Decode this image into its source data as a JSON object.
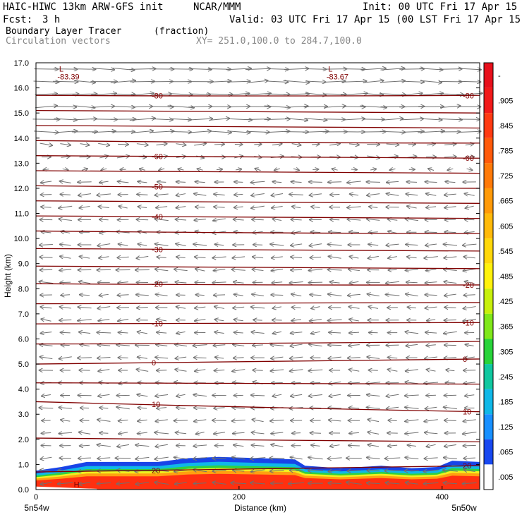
{
  "header": {
    "model": "HAIC-HIWC 13km ARW-GFS init",
    "org": "NCAR/MMM",
    "init": "Init: 00 UTC Fri 17 Apr 15",
    "fcst_label": "Fcst:",
    "fcst_value": "3 h",
    "valid": "Valid: 03 UTC Fri 17 Apr 15 (00 LST Fri 17 Apr 15)",
    "field": "Boundary Layer Tracer",
    "units": "(fraction)",
    "vectors": "Circulation vectors",
    "xy": "XY= 251.0,100.0 to 284.7,100.0"
  },
  "chart_data": {
    "type": "cross-section",
    "ylabel": "Height (km)",
    "xlabel": "Distance (km)",
    "ylim": [
      0.0,
      17.0
    ],
    "xlim": [
      0,
      437
    ],
    "y_ticks": [
      "0.0",
      "1.0",
      "2.0",
      "3.0",
      "4.0",
      "5.0",
      "6.0",
      "7.0",
      "8.0",
      "9.0",
      "10.0",
      "11.0",
      "12.0",
      "13.0",
      "14.0",
      "15.0",
      "16.0",
      "17.0"
    ],
    "x_ticks": [
      {
        "value": 0,
        "label": "0"
      },
      {
        "value": 200,
        "label": "200"
      },
      {
        "value": 400,
        "label": "400"
      }
    ],
    "x_endpoints": {
      "left": "5n54w",
      "right": "5n50w"
    },
    "colorbar": {
      "labels": [
        "-",
        ".905",
        ".845",
        ".785",
        ".725",
        ".665",
        ".605",
        ".545",
        ".485",
        ".425",
        ".365",
        ".305",
        ".245",
        ".185",
        ".125",
        ".065",
        ".005"
      ],
      "colors": [
        "#e8101c",
        "#f21a1a",
        "#ff3a12",
        "#ff5a0a",
        "#ff7a08",
        "#ff9a08",
        "#ffba0a",
        "#ffd80a",
        "#fff20c",
        "#c8f00c",
        "#80e81a",
        "#28d43a",
        "#10c8a0",
        "#10b8e8",
        "#1890ff",
        "#1848f0",
        "#ffffff"
      ]
    },
    "temperature_contours": {
      "color": "#800000",
      "levels": [
        {
          "value": -80,
          "y_left": 15.7,
          "y_right": 15.7
        },
        {
          "value": null,
          "y_left": 15.1,
          "y_right": 15.0
        },
        {
          "value": null,
          "y_left": 14.5,
          "y_right": 14.4
        },
        {
          "value": null,
          "y_left": 13.9,
          "y_right": 13.8
        },
        {
          "value": -60,
          "y_left": 13.3,
          "y_right": 13.2
        },
        {
          "value": null,
          "y_left": 12.7,
          "y_right": 12.6
        },
        {
          "value": -50,
          "y_left": 12.1,
          "y_right": 12.0
        },
        {
          "value": null,
          "y_left": 11.5,
          "y_right": 11.4
        },
        {
          "value": -40,
          "y_left": 10.9,
          "y_right": 10.8
        },
        {
          "value": null,
          "y_left": 10.3,
          "y_right": 10.2
        },
        {
          "value": -30,
          "y_left": 9.6,
          "y_right": 9.5
        },
        {
          "value": null,
          "y_left": 8.9,
          "y_right": 8.8
        },
        {
          "value": -20,
          "y_left": 8.2,
          "y_right": 8.15
        },
        {
          "value": null,
          "y_left": 7.4,
          "y_right": 7.45
        },
        {
          "value": -10,
          "y_left": 6.6,
          "y_right": 6.65
        },
        {
          "value": null,
          "y_left": 5.8,
          "y_right": 5.9
        },
        {
          "value": 0,
          "y_left": 5.0,
          "y_right": 5.2
        },
        {
          "value": null,
          "y_left": 4.25,
          "y_right": 4.2
        },
        {
          "value": 10,
          "y_left": 3.5,
          "y_right": 3.1
        },
        {
          "value": null,
          "y_left": 2.05,
          "y_right": 1.9
        },
        {
          "value": 20,
          "y_left": 0.7,
          "y_right": 0.95
        }
      ],
      "extrema": [
        {
          "type": "L",
          "value": "-83.39",
          "x": 25,
          "y": 16.9
        },
        {
          "type": "L",
          "value": "-83.67",
          "x": 290,
          "y": 16.9
        },
        {
          "type": "H",
          "value": "",
          "x": 40,
          "y": 0.35
        }
      ]
    },
    "tracer_boundary_top_km": [
      {
        "x": 0,
        "y": 0.75
      },
      {
        "x": 25,
        "y": 0.9
      },
      {
        "x": 50,
        "y": 1.1
      },
      {
        "x": 80,
        "y": 1.1
      },
      {
        "x": 120,
        "y": 1.1
      },
      {
        "x": 150,
        "y": 1.25
      },
      {
        "x": 180,
        "y": 1.3
      },
      {
        "x": 220,
        "y": 1.25
      },
      {
        "x": 255,
        "y": 1.2
      },
      {
        "x": 265,
        "y": 0.95
      },
      {
        "x": 300,
        "y": 0.85
      },
      {
        "x": 340,
        "y": 0.95
      },
      {
        "x": 370,
        "y": 0.85
      },
      {
        "x": 395,
        "y": 0.9
      },
      {
        "x": 410,
        "y": 1.15
      },
      {
        "x": 437,
        "y": 1.1
      }
    ]
  }
}
